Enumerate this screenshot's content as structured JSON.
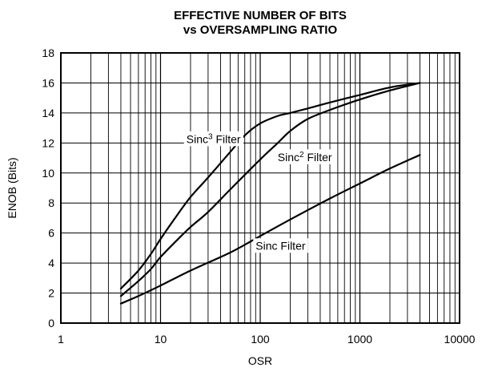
{
  "chart_data": {
    "type": "line",
    "title": [
      "EFFECTIVE NUMBER OF BITS",
      "vs OVERSAMPLING RATIO"
    ],
    "xlabel": "OSR",
    "ylabel": "ENOB (Bits)",
    "x_scale": "log",
    "xlim": [
      1,
      10000
    ],
    "ylim": [
      0,
      18
    ],
    "x_ticks": [
      1,
      10,
      100,
      1000,
      10000
    ],
    "x_tick_labels": [
      "1",
      "10",
      "100",
      "1000",
      "10000"
    ],
    "y_ticks": [
      0,
      2,
      4,
      6,
      8,
      10,
      12,
      14,
      16,
      18
    ],
    "y_tick_labels": [
      "0",
      "2",
      "4",
      "6",
      "8",
      "10",
      "12",
      "14",
      "16",
      "18"
    ],
    "grid": true,
    "legend": "none",
    "series": [
      {
        "name": "Sinc³ Filter",
        "label_base": "Sinc",
        "label_sup": "3",
        "label_rest": " Filter",
        "color": "#000000",
        "points": [
          [
            4,
            2.3
          ],
          [
            6,
            3.5
          ],
          [
            8,
            4.6
          ],
          [
            10,
            5.6
          ],
          [
            14,
            7.0
          ],
          [
            20,
            8.4
          ],
          [
            30,
            9.7
          ],
          [
            50,
            11.4
          ],
          [
            70,
            12.5
          ],
          [
            100,
            13.3
          ],
          [
            150,
            13.8
          ],
          [
            200,
            14.0
          ],
          [
            300,
            14.3
          ],
          [
            500,
            14.7
          ],
          [
            1000,
            15.2
          ],
          [
            2000,
            15.7
          ],
          [
            4000,
            16.0
          ]
        ],
        "label_at": [
          34,
          12.0
        ]
      },
      {
        "name": "Sinc² Filter",
        "label_base": "Sinc",
        "label_sup": "2",
        "label_rest": " Filter",
        "color": "#000000",
        "points": [
          [
            4,
            1.8
          ],
          [
            6,
            2.8
          ],
          [
            8,
            3.6
          ],
          [
            10,
            4.4
          ],
          [
            15,
            5.6
          ],
          [
            20,
            6.4
          ],
          [
            30,
            7.4
          ],
          [
            50,
            8.9
          ],
          [
            100,
            10.9
          ],
          [
            150,
            12.0
          ],
          [
            200,
            12.8
          ],
          [
            300,
            13.6
          ],
          [
            500,
            14.2
          ],
          [
            1000,
            14.9
          ],
          [
            2000,
            15.5
          ],
          [
            4000,
            16.0
          ]
        ],
        "label_at": [
          280,
          10.8
        ]
      },
      {
        "name": "Sinc Filter",
        "label_base": "Sinc",
        "label_sup": "",
        "label_rest": " Filter",
        "color": "#000000",
        "points": [
          [
            4,
            1.3
          ],
          [
            6,
            1.8
          ],
          [
            10,
            2.5
          ],
          [
            20,
            3.5
          ],
          [
            50,
            4.7
          ],
          [
            100,
            5.8
          ],
          [
            200,
            6.9
          ],
          [
            500,
            8.3
          ],
          [
            1000,
            9.3
          ],
          [
            2000,
            10.3
          ],
          [
            4000,
            11.2
          ]
        ],
        "label_at": [
          160,
          4.9
        ]
      }
    ]
  }
}
